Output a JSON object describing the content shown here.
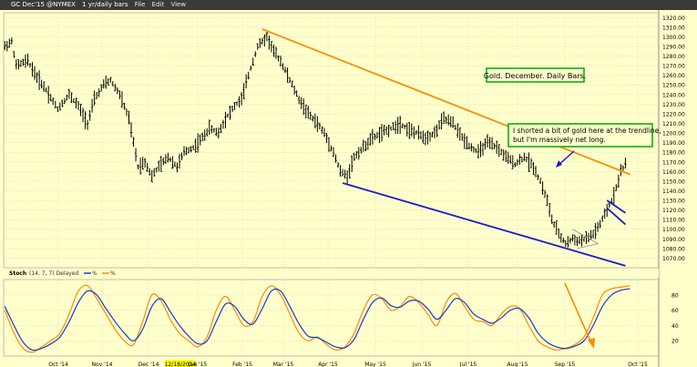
{
  "titlebar": {
    "symbol": "GC Dec'15 @NYMEX",
    "interval": "1 yr/daily bars",
    "menus": [
      "File",
      "Edit",
      "View"
    ]
  },
  "annotations": {
    "title_box": "Gold. December. Daily Bars.",
    "comment_line1": "I shorted a bit of gold here at the trendline,",
    "comment_line2": "but I'm massively net long."
  },
  "stoch_legend": {
    "label": "Stoch",
    "params": "(14, 7, 7) Delayed",
    "k_label": "%",
    "d_label": "%"
  },
  "colors": {
    "background": "#ffffcc",
    "price_bars": "#000000",
    "upper_trendline": "#ff8c00",
    "lower_trendline": "#1a1acc",
    "stoch_k": "#ff8c00",
    "stoch_d": "#1a3acc",
    "annotation_border": "#00aa00"
  },
  "chart_data": [
    {
      "type": "ohlc",
      "ylim": [
        1060,
        1325
      ],
      "y_ticks": [
        "1320.00",
        "1310.00",
        "1300.00",
        "1290.00",
        "1280.00",
        "1270.00",
        "1260.00",
        "1250.00",
        "1240.00",
        "1230.00",
        "1220.00",
        "1210.00",
        "1200.00",
        "1190.00",
        "1180.00",
        "1170.00",
        "1160.00",
        "1150.00",
        "1140.00",
        "1130.00",
        "1120.00",
        "1110.00",
        "1100.00",
        "1090.00",
        "1080.00",
        "1070.00"
      ],
      "x_ticks": [
        "Oct '14",
        "Nov '14",
        "Dec '14",
        "12/18/2014",
        "Jan '15",
        "Feb '15",
        "Mar '15",
        "Apr '15",
        "May '15",
        "Jun '15",
        "Jul '15",
        "Aug '15",
        "Sep '15",
        "Oct '15"
      ],
      "highlighted_x_tick": "12/18/2014",
      "anchors": [
        [
          0,
          1290
        ],
        [
          3,
          1295
        ],
        [
          5,
          1270
        ],
        [
          10,
          1275
        ],
        [
          14,
          1258
        ],
        [
          18,
          1245
        ],
        [
          23,
          1225
        ],
        [
          28,
          1240
        ],
        [
          32,
          1228
        ],
        [
          36,
          1210
        ],
        [
          39,
          1235
        ],
        [
          43,
          1250
        ],
        [
          46,
          1255
        ],
        [
          50,
          1240
        ],
        [
          54,
          1215
        ],
        [
          58,
          1165
        ],
        [
          61,
          1170
        ],
        [
          64,
          1155
        ],
        [
          67,
          1165
        ],
        [
          71,
          1175
        ],
        [
          75,
          1165
        ],
        [
          78,
          1180
        ],
        [
          82,
          1185
        ],
        [
          86,
          1195
        ],
        [
          89,
          1205
        ],
        [
          93,
          1200
        ],
        [
          96,
          1215
        ],
        [
          100,
          1228
        ],
        [
          103,
          1235
        ],
        [
          106,
          1260
        ],
        [
          110,
          1290
        ],
        [
          114,
          1300
        ],
        [
          117,
          1285
        ],
        [
          120,
          1275
        ],
        [
          124,
          1255
        ],
        [
          128,
          1235
        ],
        [
          132,
          1220
        ],
        [
          136,
          1210
        ],
        [
          139,
          1200
        ],
        [
          143,
          1180
        ],
        [
          146,
          1160
        ],
        [
          149,
          1155
        ],
        [
          152,
          1175
        ],
        [
          156,
          1185
        ],
        [
          160,
          1195
        ],
        [
          164,
          1200
        ],
        [
          168,
          1205
        ],
        [
          172,
          1210
        ],
        [
          176,
          1203
        ],
        [
          179,
          1200
        ],
        [
          183,
          1195
        ],
        [
          187,
          1200
        ],
        [
          191,
          1215
        ],
        [
          195,
          1210
        ],
        [
          199,
          1195
        ],
        [
          203,
          1185
        ],
        [
          206,
          1180
        ],
        [
          210,
          1190
        ],
        [
          214,
          1185
        ],
        [
          218,
          1175
        ],
        [
          222,
          1168
        ],
        [
          226,
          1175
        ],
        [
          230,
          1165
        ],
        [
          233,
          1150
        ],
        [
          236,
          1130
        ],
        [
          238,
          1110
        ],
        [
          241,
          1095
        ],
        [
          244,
          1085
        ],
        [
          247,
          1090
        ],
        [
          250,
          1088
        ],
        [
          253,
          1090
        ],
        [
          256,
          1095
        ],
        [
          259,
          1105
        ],
        [
          262,
          1120
        ],
        [
          265,
          1135
        ],
        [
          268,
          1160
        ],
        [
          270,
          1168
        ]
      ],
      "trendlines": [
        {
          "name": "upper",
          "color": "orange",
          "from": [
            112,
            1308
          ],
          "to": [
            272,
            1157
          ]
        },
        {
          "name": "lower",
          "color": "blue",
          "from": [
            147,
            1148
          ],
          "to": [
            270,
            1062
          ]
        },
        {
          "name": "wedge-1",
          "color": "blue",
          "from": [
            262,
            1130
          ],
          "to": [
            270,
            1117
          ]
        },
        {
          "name": "wedge-2",
          "color": "blue",
          "from": [
            262,
            1122
          ],
          "to": [
            270,
            1105
          ]
        }
      ]
    },
    {
      "type": "line",
      "title": "Stoch",
      "ylim": [
        0,
        100
      ],
      "y_ticks": [
        "80",
        "60",
        "40",
        "20"
      ],
      "series": [
        {
          "name": "%K",
          "color": "orange",
          "x": [
            0,
            4,
            8,
            12,
            16,
            20,
            24,
            28,
            32,
            36,
            40,
            44,
            48,
            52,
            56,
            60,
            64,
            68,
            72,
            76,
            80,
            84,
            88,
            92,
            96,
            100,
            104,
            108,
            112,
            116,
            120,
            124,
            128,
            132,
            136,
            140,
            144,
            148,
            152,
            156,
            160,
            164,
            168,
            172,
            176,
            180,
            184,
            188,
            192,
            196,
            200,
            204,
            208,
            212,
            216,
            220,
            224,
            228,
            232,
            236,
            240,
            244,
            248,
            252,
            256,
            260,
            264,
            268,
            272
          ],
          "values": [
            60,
            30,
            10,
            5,
            12,
            20,
            30,
            55,
            85,
            92,
            75,
            55,
            35,
            20,
            15,
            45,
            80,
            72,
            48,
            30,
            20,
            12,
            25,
            60,
            78,
            60,
            40,
            45,
            78,
            92,
            80,
            55,
            30,
            20,
            25,
            15,
            8,
            12,
            30,
            60,
            80,
            75,
            60,
            65,
            78,
            70,
            55,
            40,
            70,
            82,
            65,
            48,
            45,
            40,
            55,
            65,
            62,
            40,
            20,
            12,
            8,
            10,
            15,
            25,
            50,
            80,
            88,
            90,
            92
          ]
        },
        {
          "name": "%D",
          "color": "blue",
          "x": [
            0,
            4,
            8,
            12,
            16,
            20,
            24,
            28,
            32,
            36,
            40,
            44,
            48,
            52,
            56,
            60,
            64,
            68,
            72,
            76,
            80,
            84,
            88,
            92,
            96,
            100,
            104,
            108,
            112,
            116,
            120,
            124,
            128,
            132,
            136,
            140,
            144,
            148,
            152,
            156,
            160,
            164,
            168,
            172,
            176,
            180,
            184,
            188,
            192,
            196,
            200,
            204,
            208,
            212,
            216,
            220,
            224,
            228,
            232,
            236,
            240,
            244,
            248,
            252,
            256,
            260,
            264,
            268,
            272
          ],
          "values": [
            65,
            40,
            18,
            8,
            10,
            16,
            25,
            45,
            70,
            85,
            80,
            62,
            45,
            30,
            20,
            35,
            65,
            75,
            58,
            40,
            26,
            16,
            20,
            45,
            68,
            65,
            48,
            42,
            62,
            85,
            85,
            65,
            42,
            26,
            24,
            18,
            12,
            11,
            22,
            48,
            70,
            76,
            66,
            64,
            72,
            72,
            62,
            48,
            60,
            75,
            70,
            55,
            48,
            43,
            50,
            60,
            62,
            50,
            30,
            18,
            12,
            10,
            13,
            20,
            40,
            65,
            80,
            86,
            88
          ]
        }
      ]
    }
  ]
}
